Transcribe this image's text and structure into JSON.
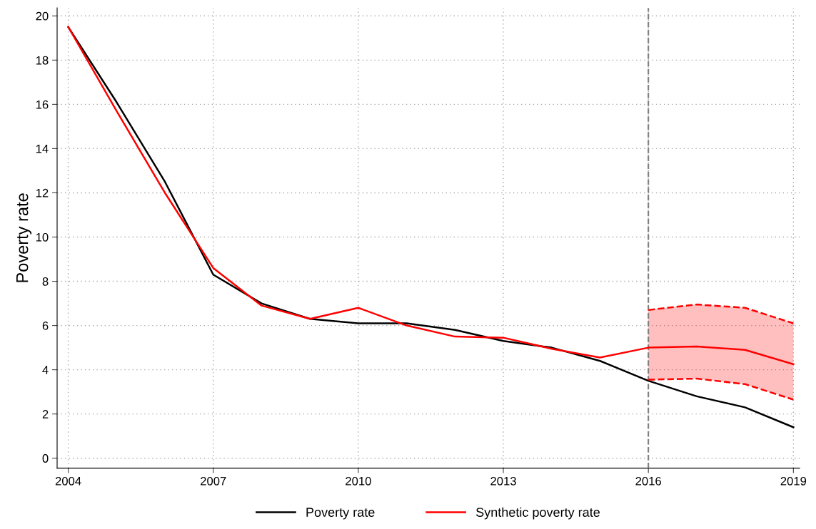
{
  "chart_data": {
    "type": "line",
    "ylabel": "Poverty rate",
    "x": [
      2004,
      2005,
      2006,
      2007,
      2008,
      2009,
      2010,
      2011,
      2012,
      2013,
      2014,
      2015,
      2016,
      2017,
      2018,
      2019
    ],
    "series": [
      {
        "name": "Poverty rate",
        "color": "#000000",
        "values": [
          19.5,
          16.1,
          12.5,
          8.3,
          7.0,
          6.3,
          6.1,
          6.1,
          5.8,
          5.3,
          5.0,
          4.4,
          3.5,
          2.8,
          2.3,
          1.4
        ]
      },
      {
        "name": "Synthetic poverty rate",
        "color": "#ff0000",
        "values": [
          19.5,
          15.7,
          12.0,
          8.6,
          6.9,
          6.3,
          6.8,
          6.0,
          5.5,
          5.45,
          4.95,
          4.55,
          5.0,
          5.05,
          4.9,
          4.25
        ],
        "lower": [
          null,
          null,
          null,
          null,
          null,
          null,
          null,
          null,
          null,
          null,
          null,
          null,
          3.55,
          3.6,
          3.35,
          2.65
        ],
        "upper": [
          null,
          null,
          null,
          null,
          null,
          null,
          null,
          null,
          null,
          null,
          null,
          null,
          6.7,
          6.95,
          6.8,
          6.1
        ]
      },
      {
        "color": "#ff0000",
        "line_style": "dashed",
        "x": [
          2016,
          2017,
          2018,
          2019
        ],
        "values": [
          3.55,
          3.6,
          3.35,
          2.65
        ]
      },
      {
        "color": "#ff0000",
        "line_style": "dashed",
        "x": [
          2016,
          2017,
          2018,
          2019
        ],
        "values": [
          6.7,
          6.95,
          6.8,
          6.1
        ]
      }
    ],
    "xlim": [
      2003.77,
      2019.13
    ],
    "xticks": [
      2004,
      2007,
      2010,
      2013,
      2016,
      2019
    ],
    "ylim": [
      -0.45,
      20.36
    ],
    "yticks": [
      0,
      2,
      4,
      6,
      8,
      10,
      12,
      14,
      16,
      18,
      20
    ],
    "ref_lines": [
      {
        "axis": "x",
        "value": 2016,
        "color": "#808080",
        "line_style": "dashed"
      }
    ],
    "grid": true,
    "legend": "bottom",
    "line_style": "solid",
    "marker": "none"
  }
}
